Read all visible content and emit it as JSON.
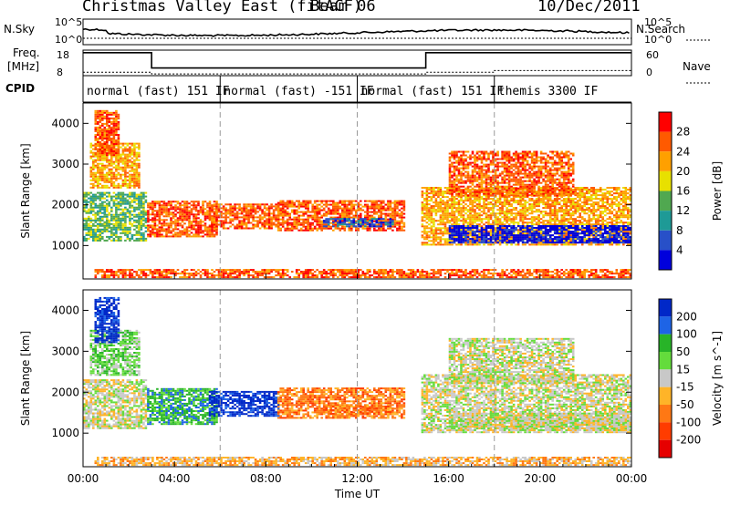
{
  "header": {
    "title": "Christmas Valley East (fitACF)",
    "beam": "Beam 06",
    "date": "10/Dec/2011"
  },
  "chart_data": {
    "type": "heatmap",
    "xlabel": "Time UT",
    "x_ticks": [
      "00:00",
      "04:00",
      "08:00",
      "12:00",
      "16:00",
      "20:00",
      "00:00"
    ],
    "x_range_hours": [
      0,
      24
    ],
    "noise_panel": {
      "left_label": "N.Sky",
      "right_label": "N.Search",
      "left_ticks": [
        "10^5",
        "10^0"
      ],
      "right_ticks": [
        "10^5",
        "10^0"
      ]
    },
    "freq_panel": {
      "left_label_line1": "Freq.",
      "left_label_line2": "[MHz]",
      "right_label": "Nave",
      "left_ticks": [
        18,
        8
      ],
      "right_ticks": [
        60,
        0
      ],
      "freq_segments": [
        {
          "start_h": 0,
          "end_h": 3,
          "value": 17
        },
        {
          "start_h": 3,
          "end_h": 15,
          "value": 11
        },
        {
          "start_h": 15,
          "end_h": 24,
          "value": 17
        }
      ],
      "nave_segments": [
        {
          "start_h": 0,
          "end_h": 3,
          "value": 8
        },
        {
          "start_h": 3,
          "end_h": 15,
          "value": 4
        },
        {
          "start_h": 15,
          "end_h": 18,
          "value": 8
        },
        {
          "start_h": 18,
          "end_h": 24,
          "value": 12
        }
      ]
    },
    "cpid_label": "CPID",
    "cpid_segments": [
      {
        "start_h": 0,
        "end_h": 6,
        "label": "normal (fast) 151 IF"
      },
      {
        "start_h": 6,
        "end_h": 12,
        "label": "normal (fast) -151 IF"
      },
      {
        "start_h": 12,
        "end_h": 18,
        "label": "normal (fast) 151 IF"
      },
      {
        "start_h": 18,
        "end_h": 24,
        "label": "themis 3300 IF"
      }
    ],
    "ylabel": "Slant Range [km]",
    "ylim": [
      180,
      4500
    ],
    "y_ticks": [
      1000,
      2000,
      3000,
      4000
    ],
    "power": {
      "label": "Power [dB]",
      "ticks": [
        28,
        24,
        20,
        16,
        12,
        8,
        4
      ],
      "colors": [
        "#ff0000",
        "#ff5a00",
        "#ffa000",
        "#e8e000",
        "#50a850",
        "#1e9a96",
        "#2850c8",
        "#0000dc"
      ]
    },
    "velocity": {
      "label": "Velocity [m s^-1]",
      "ticks": [
        200,
        100,
        50,
        15,
        -15,
        -50,
        -100,
        -200
      ],
      "colors": [
        "#0028c8",
        "#1e64e6",
        "#28b428",
        "#64dc3c",
        "#c8c8c8",
        "#ffb428",
        "#ff7814",
        "#ff3c00",
        "#e60000"
      ]
    },
    "echo_regions": [
      {
        "t0": 0.0,
        "t1": 2.8,
        "r0": 1100,
        "r1": 2300,
        "power_level": 4,
        "velocity_level": 4
      },
      {
        "t0": 0.3,
        "t1": 2.5,
        "r0": 2400,
        "r1": 3500,
        "power_level": 2,
        "velocity_level": 3
      },
      {
        "t0": 0.5,
        "t1": 1.6,
        "r0": 3200,
        "r1": 4300,
        "power_level": 1,
        "velocity_level": 0
      },
      {
        "t0": 2.8,
        "t1": 5.8,
        "r0": 1200,
        "r1": 2100,
        "power_level": 1,
        "velocity_level": 2
      },
      {
        "t0": 5.5,
        "t1": 8.5,
        "r0": 1400,
        "r1": 2000,
        "power_level": 1,
        "velocity_level": 0
      },
      {
        "t0": 8.5,
        "t1": 14.0,
        "r0": 1350,
        "r1": 2100,
        "power_level": 1,
        "velocity_level": 6
      },
      {
        "t0": 10.5,
        "t1": 13.5,
        "r0": 1450,
        "r1": 1650,
        "power_level": 6,
        "velocity_level": 6
      },
      {
        "t0": 14.8,
        "t1": 24.0,
        "r0": 1000,
        "r1": 2400,
        "power_level": 2,
        "velocity_level": 4
      },
      {
        "t0": 16.0,
        "t1": 24.0,
        "r0": 1050,
        "r1": 1500,
        "power_level": 7,
        "velocity_level": 4
      },
      {
        "t0": 16.0,
        "t1": 21.5,
        "r0": 2200,
        "r1": 3300,
        "power_level": 1,
        "velocity_level": 4
      },
      {
        "t0": 0.5,
        "t1": 24.0,
        "r0": 200,
        "r1": 420,
        "power_level": 1,
        "velocity_level": 5
      }
    ]
  }
}
